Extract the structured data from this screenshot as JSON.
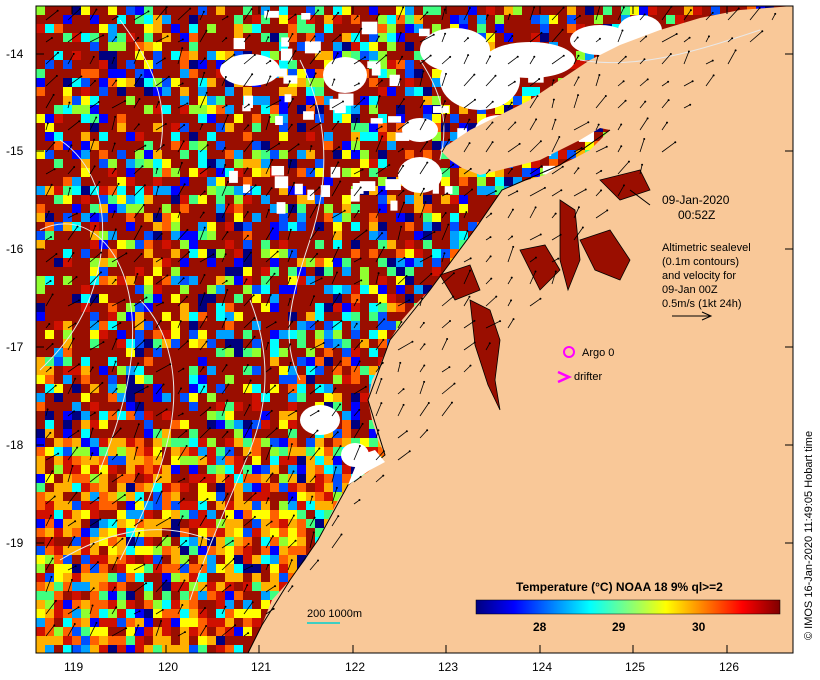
{
  "map": {
    "x_ticks": [
      "119",
      "120",
      "121",
      "122",
      "123",
      "124",
      "125",
      "126"
    ],
    "y_ticks": [
      "-14",
      "-15",
      "-16",
      "-17",
      "-18",
      "-19"
    ],
    "land_color": "#f9c898",
    "no_data_color": "#ffffff"
  },
  "annotations": {
    "date": "09-Jan-2020",
    "time": "00:52Z",
    "altimetry_lines": [
      "Altimetric sealevel",
      "(0.1m contours)",
      "and velocity for",
      "09-Jan 00Z",
      "0.5m/s (1kt 24h)"
    ],
    "argo_label": "Argo 0",
    "drifter_label": "drifter",
    "scale_label": "200  1000m",
    "marker_color": "#ff00ff"
  },
  "colorbar": {
    "title": "Temperature (°C) NOAA 18 9% ql>=2",
    "ticks": [
      "28",
      "29",
      "30"
    ],
    "colors": [
      "#00007f",
      "#0000ff",
      "#007fff",
      "#00ffff",
      "#7fff7f",
      "#ffff00",
      "#ff7f00",
      "#ff0000",
      "#7f0000"
    ]
  },
  "credit": "© IMOS 16-Jan-2020 11:49:05 Hobart time"
}
